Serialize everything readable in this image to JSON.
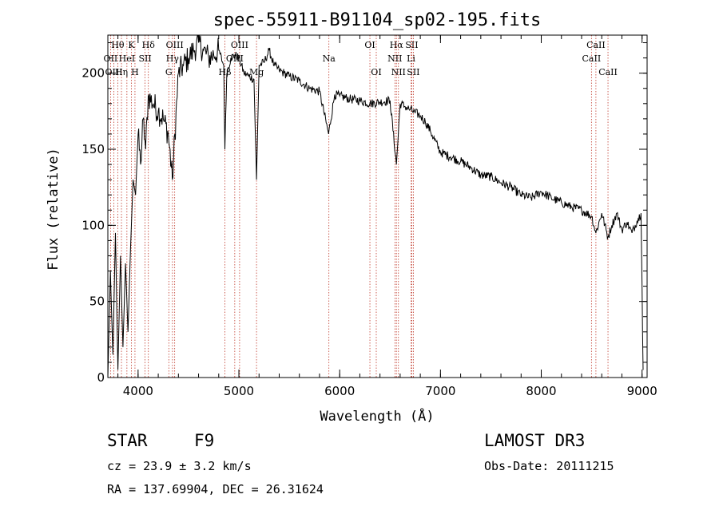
{
  "chart_data": {
    "type": "line",
    "title": "spec-55911-B91104_sp02-195.fits",
    "xlabel": "Wavelength (Å)",
    "ylabel": "Flux (relative)",
    "xlim": [
      3700,
      9050
    ],
    "ylim": [
      0,
      225
    ],
    "x_ticks": [
      4000,
      5000,
      6000,
      7000,
      8000,
      9000
    ],
    "y_ticks": [
      0,
      50,
      100,
      150,
      200
    ],
    "x_minor_step": 200,
    "y_minor_step": 10,
    "grid": false,
    "series": [
      {
        "name": "flux",
        "x": [
          3700,
          3725,
          3750,
          3775,
          3800,
          3825,
          3850,
          3875,
          3900,
          3925,
          3950,
          3975,
          4000,
          4025,
          4050,
          4075,
          4100,
          4150,
          4200,
          4250,
          4300,
          4340,
          4400,
          4450,
          4500,
          4550,
          4600,
          4650,
          4700,
          4750,
          4800,
          4850,
          4861,
          4880,
          4920,
          4960,
          5000,
          5050,
          5100,
          5150,
          5175,
          5200,
          5250,
          5300,
          5350,
          5400,
          5450,
          5500,
          5600,
          5700,
          5800,
          5890,
          5950,
          6000,
          6100,
          6200,
          6300,
          6400,
          6500,
          6563,
          6600,
          6650,
          6700,
          6750,
          6800,
          6850,
          6900,
          7000,
          7100,
          7200,
          7300,
          7400,
          7500,
          7600,
          7700,
          7800,
          7900,
          8000,
          8100,
          8200,
          8300,
          8400,
          8500,
          8542,
          8600,
          8662,
          8700,
          8750,
          8800,
          8850,
          8900,
          8950,
          8990,
          9000,
          9010
        ],
        "y": [
          0,
          70,
          15,
          95,
          5,
          80,
          20,
          75,
          30,
          85,
          130,
          120,
          160,
          140,
          170,
          150,
          185,
          180,
          175,
          170,
          160,
          130,
          200,
          205,
          210,
          215,
          220,
          215,
          210,
          212,
          215,
          205,
          150,
          200,
          210,
          212,
          210,
          200,
          198,
          196,
          130,
          205,
          207,
          215,
          205,
          202,
          200,
          198,
          195,
          190,
          188,
          160,
          186,
          185,
          183,
          182,
          180,
          181,
          182,
          140,
          180,
          178,
          176,
          174,
          172,
          168,
          162,
          148,
          145,
          142,
          138,
          133,
          132,
          128,
          125,
          120,
          118,
          122,
          118,
          115,
          112,
          110,
          106,
          95,
          108,
          92,
          100,
          108,
          97,
          102,
          95,
          103,
          108,
          60,
          5
        ]
      }
    ],
    "spectral_lines": [
      {
        "label": "Hθ",
        "wavelength": 3798,
        "row": 1
      },
      {
        "label": "OII",
        "wavelength": 3727,
        "row": 2
      },
      {
        "label": "OIII",
        "wavelength": 3760,
        "row": 3
      },
      {
        "label": "K",
        "wavelength": 3934,
        "row": 1
      },
      {
        "label": "HeI",
        "wavelength": 3889,
        "row": 2
      },
      {
        "label": "Hη",
        "wavelength": 3835,
        "row": 3
      },
      {
        "label": "Hδ",
        "wavelength": 4102,
        "row": 1
      },
      {
        "label": "SII",
        "wavelength": 4069,
        "row": 2
      },
      {
        "label": "H",
        "wavelength": 3969,
        "row": 3
      },
      {
        "label": "OIII",
        "wavelength": 4363,
        "row": 1
      },
      {
        "label": "Hγ",
        "wavelength": 4341,
        "row": 2
      },
      {
        "label": "G",
        "wavelength": 4305,
        "row": 3
      },
      {
        "label": "OIII",
        "wavelength": 5007,
        "row": 1
      },
      {
        "label": "OIII",
        "wavelength": 4959,
        "row": 2
      },
      {
        "label": "Hβ",
        "wavelength": 4861,
        "row": 3
      },
      {
        "label": "Mg",
        "wavelength": 5175,
        "row": 3
      },
      {
        "label": "Na",
        "wavelength": 5893,
        "row": 2
      },
      {
        "label": "OI",
        "wavelength": 6300,
        "row": 1
      },
      {
        "label": "OI",
        "wavelength": 6363,
        "row": 3
      },
      {
        "label": "Hα",
        "wavelength": 6563,
        "row": 1
      },
      {
        "label": "SII",
        "wavelength": 6716,
        "row": 1
      },
      {
        "label": "NII",
        "wavelength": 6548,
        "row": 2
      },
      {
        "label": "Li",
        "wavelength": 6708,
        "row": 2
      },
      {
        "label": "NII",
        "wavelength": 6583,
        "row": 3
      },
      {
        "label": "SII",
        "wavelength": 6731,
        "row": 3
      },
      {
        "label": "CaII",
        "wavelength": 8542,
        "row": 1
      },
      {
        "label": "CaII",
        "wavelength": 8498,
        "row": 2
      },
      {
        "label": "CaII",
        "wavelength": 8662,
        "row": 3
      }
    ]
  },
  "info": {
    "class_label": "STAR",
    "subclass": "F9",
    "survey": "LAMOST DR3",
    "redshift": "cz = 23.9 ± 3.2 km/s",
    "obs_date": "Obs-Date: 20111215",
    "coords": "RA = 137.69904, DEC =  26.31624"
  },
  "colors": {
    "line_marker": "#c0392b",
    "spectrum": "#000000"
  }
}
